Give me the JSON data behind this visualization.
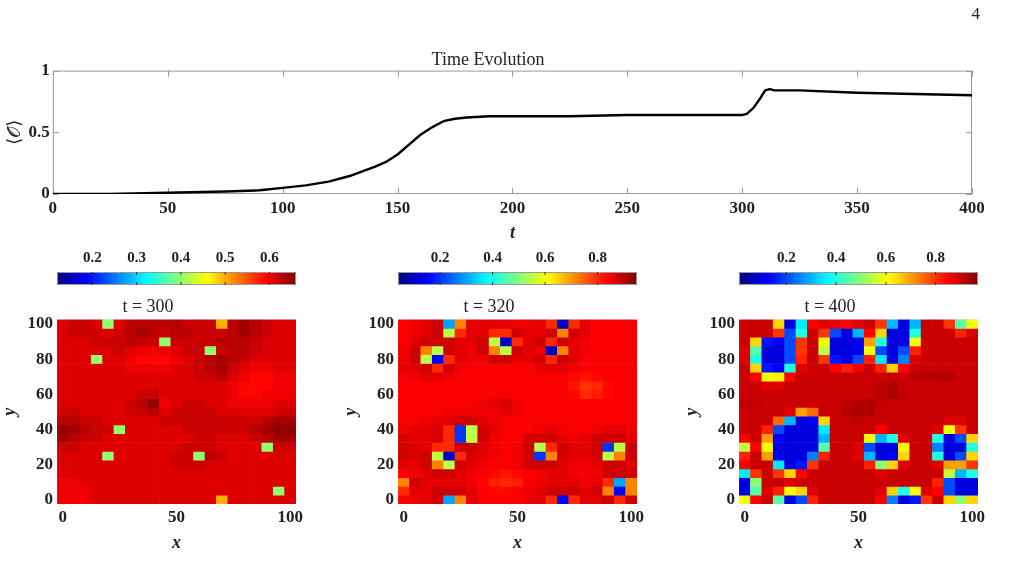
{
  "chart_data": [
    {
      "type": "line",
      "title": "Time Evolution",
      "xlabel": "t",
      "ylabel": "⟨𝒪⟩",
      "x": [
        0,
        25,
        50,
        75,
        90,
        100,
        110,
        120,
        130,
        140,
        145,
        150,
        155,
        160,
        165,
        170,
        175,
        180,
        190,
        200,
        225,
        250,
        275,
        300,
        302,
        305,
        308,
        310,
        312,
        314,
        325,
        350,
        375,
        400
      ],
      "values": [
        0,
        0,
        0.01,
        0.02,
        0.03,
        0.05,
        0.07,
        0.1,
        0.15,
        0.22,
        0.26,
        0.32,
        0.4,
        0.48,
        0.54,
        0.59,
        0.61,
        0.62,
        0.63,
        0.63,
        0.63,
        0.64,
        0.64,
        0.64,
        0.65,
        0.7,
        0.78,
        0.84,
        0.85,
        0.84,
        0.84,
        0.82,
        0.81,
        0.8
      ],
      "color": "#000000",
      "xlim": [
        0,
        400
      ],
      "ylim": [
        0,
        1
      ],
      "xticks": [
        0,
        50,
        100,
        150,
        200,
        250,
        300,
        350,
        400
      ],
      "yticks": [
        0,
        0.5,
        1
      ],
      "annotations": [
        "4"
      ]
    },
    {
      "type": "heatmap",
      "title": "t = 300",
      "xlabel": "x",
      "ylabel": "y",
      "categories": [
        "0",
        null,
        null,
        null,
        null,
        null,
        null,
        null,
        null,
        null,
        "50",
        null,
        null,
        null,
        null,
        null,
        null,
        null,
        null,
        null,
        "100"
      ],
      "y_categories": [
        "100",
        null,
        null,
        null,
        "80",
        null,
        null,
        null,
        "60",
        null,
        null,
        null,
        "40",
        null,
        null,
        null,
        "20",
        null,
        null,
        null,
        "0"
      ],
      "clim": [
        0.12,
        0.66
      ],
      "cticks": [
        0.2,
        0.3,
        0.4,
        0.5,
        0.6
      ],
      "cells": [
        [
          0.61,
          0.62,
          0.62,
          0.61,
          0.4,
          0.61,
          0.63,
          0.63,
          0.63,
          0.63,
          0.63,
          0.62,
          0.62,
          0.62,
          0.5,
          0.63,
          0.64,
          0.63,
          0.62,
          0.61,
          0.61
        ],
        [
          0.61,
          0.62,
          0.62,
          0.62,
          0.61,
          0.62,
          0.63,
          0.64,
          0.63,
          0.62,
          0.63,
          0.63,
          0.62,
          0.62,
          0.62,
          0.63,
          0.64,
          0.63,
          0.62,
          0.61,
          0.61
        ],
        [
          0.61,
          0.61,
          0.61,
          0.62,
          0.62,
          0.62,
          0.63,
          0.62,
          0.62,
          0.4,
          0.62,
          0.62,
          0.62,
          0.62,
          0.63,
          0.63,
          0.63,
          0.62,
          0.61,
          0.61,
          0.61
        ],
        [
          0.61,
          0.61,
          0.61,
          0.61,
          0.61,
          0.62,
          0.61,
          0.6,
          0.6,
          0.6,
          0.61,
          0.62,
          0.62,
          0.4,
          0.62,
          0.63,
          0.63,
          0.62,
          0.61,
          0.61,
          0.61
        ],
        [
          0.61,
          0.61,
          0.61,
          0.4,
          0.61,
          0.61,
          0.6,
          0.59,
          0.59,
          0.59,
          0.6,
          0.61,
          0.62,
          0.63,
          0.64,
          0.63,
          0.62,
          0.61,
          0.61,
          0.61,
          0.61
        ],
        [
          0.61,
          0.61,
          0.61,
          0.61,
          0.61,
          0.61,
          0.6,
          0.6,
          0.6,
          0.6,
          0.61,
          0.61,
          0.62,
          0.63,
          0.64,
          0.62,
          0.61,
          0.6,
          0.6,
          0.61,
          0.61
        ],
        [
          0.61,
          0.61,
          0.61,
          0.61,
          0.61,
          0.61,
          0.61,
          0.61,
          0.61,
          0.61,
          0.61,
          0.61,
          0.62,
          0.62,
          0.63,
          0.61,
          0.6,
          0.59,
          0.59,
          0.6,
          0.6
        ],
        [
          0.61,
          0.61,
          0.61,
          0.61,
          0.61,
          0.61,
          0.61,
          0.61,
          0.61,
          0.61,
          0.61,
          0.61,
          0.61,
          0.61,
          0.61,
          0.6,
          0.59,
          0.59,
          0.59,
          0.6,
          0.6
        ],
        [
          0.61,
          0.61,
          0.61,
          0.61,
          0.61,
          0.61,
          0.61,
          0.62,
          0.62,
          0.61,
          0.61,
          0.61,
          0.61,
          0.61,
          0.61,
          0.6,
          0.59,
          0.59,
          0.6,
          0.6,
          0.6
        ],
        [
          0.61,
          0.61,
          0.61,
          0.61,
          0.61,
          0.61,
          0.62,
          0.63,
          0.65,
          0.6,
          0.61,
          0.62,
          0.62,
          0.61,
          0.61,
          0.6,
          0.6,
          0.6,
          0.6,
          0.61,
          0.61
        ],
        [
          0.62,
          0.62,
          0.61,
          0.61,
          0.61,
          0.61,
          0.62,
          0.62,
          0.63,
          0.61,
          0.62,
          0.62,
          0.62,
          0.62,
          0.61,
          0.61,
          0.61,
          0.61,
          0.61,
          0.62,
          0.62
        ],
        [
          0.63,
          0.63,
          0.62,
          0.62,
          0.61,
          0.61,
          0.61,
          0.61,
          0.61,
          0.62,
          0.62,
          0.62,
          0.62,
          0.62,
          0.62,
          0.62,
          0.62,
          0.62,
          0.63,
          0.64,
          0.64
        ],
        [
          0.65,
          0.64,
          0.63,
          0.62,
          0.62,
          0.4,
          0.61,
          0.61,
          0.61,
          0.61,
          0.61,
          0.62,
          0.62,
          0.62,
          0.62,
          0.62,
          0.62,
          0.63,
          0.64,
          0.65,
          0.65
        ],
        [
          0.64,
          0.63,
          0.62,
          0.62,
          0.61,
          0.61,
          0.61,
          0.61,
          0.61,
          0.61,
          0.61,
          0.61,
          0.62,
          0.62,
          0.61,
          0.61,
          0.61,
          0.62,
          0.63,
          0.64,
          0.64
        ],
        [
          0.62,
          0.62,
          0.61,
          0.61,
          0.61,
          0.61,
          0.61,
          0.61,
          0.61,
          0.61,
          0.61,
          0.62,
          0.62,
          0.62,
          0.61,
          0.61,
          0.61,
          0.61,
          0.4,
          0.62,
          0.62
        ],
        [
          0.61,
          0.61,
          0.61,
          0.61,
          0.4,
          0.61,
          0.61,
          0.61,
          0.61,
          0.61,
          0.62,
          0.62,
          0.4,
          0.63,
          0.62,
          0.61,
          0.61,
          0.61,
          0.61,
          0.61,
          0.61
        ],
        [
          0.61,
          0.61,
          0.61,
          0.61,
          0.61,
          0.61,
          0.61,
          0.61,
          0.61,
          0.61,
          0.62,
          0.62,
          0.62,
          0.61,
          0.61,
          0.61,
          0.61,
          0.61,
          0.61,
          0.61,
          0.61
        ],
        [
          0.61,
          0.61,
          0.61,
          0.61,
          0.61,
          0.61,
          0.61,
          0.61,
          0.61,
          0.61,
          0.61,
          0.61,
          0.61,
          0.61,
          0.61,
          0.61,
          0.61,
          0.61,
          0.61,
          0.61,
          0.61
        ],
        [
          0.6,
          0.6,
          0.61,
          0.61,
          0.61,
          0.61,
          0.61,
          0.61,
          0.61,
          0.61,
          0.61,
          0.61,
          0.61,
          0.61,
          0.61,
          0.61,
          0.61,
          0.61,
          0.61,
          0.61,
          0.61
        ],
        [
          0.6,
          0.6,
          0.6,
          0.61,
          0.61,
          0.61,
          0.61,
          0.61,
          0.61,
          0.61,
          0.61,
          0.61,
          0.61,
          0.61,
          0.61,
          0.61,
          0.61,
          0.61,
          0.61,
          0.4,
          0.61
        ],
        [
          0.6,
          0.6,
          0.6,
          0.61,
          0.61,
          0.61,
          0.61,
          0.61,
          0.61,
          0.61,
          0.61,
          0.61,
          0.61,
          0.61,
          0.5,
          0.61,
          0.61,
          0.61,
          0.61,
          0.61,
          0.61
        ]
      ]
    },
    {
      "type": "heatmap",
      "title": "t = 320",
      "xlabel": "x",
      "ylabel": "y",
      "categories": [
        "0",
        null,
        null,
        null,
        null,
        null,
        null,
        null,
        null,
        null,
        "50",
        null,
        null,
        null,
        null,
        null,
        null,
        null,
        null,
        null,
        "100"
      ],
      "y_categories": [
        "100",
        null,
        null,
        null,
        "80",
        null,
        null,
        null,
        "60",
        null,
        null,
        null,
        "40",
        null,
        null,
        null,
        "20",
        null,
        null,
        null,
        "0"
      ],
      "clim": [
        0.04,
        0.95
      ],
      "cticks": [
        0.2,
        0.4,
        0.6,
        0.8
      ],
      "cells": [
        [
          0.84,
          0.85,
          0.86,
          0.88,
          0.3,
          0.72,
          0.86,
          0.86,
          0.86,
          0.86,
          0.85,
          0.85,
          0.86,
          0.8,
          0.1,
          0.8,
          0.86,
          0.84,
          0.84,
          0.84,
          0.84
        ],
        [
          0.84,
          0.85,
          0.86,
          0.88,
          0.55,
          0.8,
          0.86,
          0.86,
          0.8,
          0.8,
          0.88,
          0.86,
          0.86,
          0.88,
          0.72,
          0.88,
          0.86,
          0.84,
          0.84,
          0.84,
          0.84
        ],
        [
          0.84,
          0.86,
          0.88,
          0.88,
          0.88,
          0.86,
          0.86,
          0.88,
          0.55,
          0.1,
          0.8,
          0.86,
          0.88,
          0.8,
          0.88,
          0.86,
          0.85,
          0.84,
          0.84,
          0.84,
          0.84
        ],
        [
          0.85,
          0.88,
          0.72,
          0.55,
          0.88,
          0.86,
          0.85,
          0.88,
          0.72,
          0.55,
          0.88,
          0.86,
          0.85,
          0.1,
          0.72,
          0.86,
          0.85,
          0.84,
          0.84,
          0.84,
          0.84
        ],
        [
          0.85,
          0.88,
          0.55,
          0.15,
          0.8,
          0.86,
          0.85,
          0.85,
          0.88,
          0.88,
          0.86,
          0.86,
          0.88,
          0.8,
          0.88,
          0.86,
          0.84,
          0.84,
          0.84,
          0.84,
          0.84
        ],
        [
          0.86,
          0.86,
          0.88,
          0.8,
          0.88,
          0.85,
          0.84,
          0.84,
          0.84,
          0.84,
          0.84,
          0.84,
          0.86,
          0.86,
          0.86,
          0.85,
          0.84,
          0.84,
          0.84,
          0.84,
          0.84
        ],
        [
          0.84,
          0.85,
          0.86,
          0.86,
          0.85,
          0.84,
          0.84,
          0.84,
          0.84,
          0.84,
          0.84,
          0.84,
          0.84,
          0.84,
          0.84,
          0.83,
          0.82,
          0.83,
          0.84,
          0.84,
          0.84
        ],
        [
          0.84,
          0.84,
          0.84,
          0.84,
          0.84,
          0.84,
          0.84,
          0.84,
          0.84,
          0.84,
          0.84,
          0.84,
          0.84,
          0.84,
          0.84,
          0.82,
          0.79,
          0.8,
          0.83,
          0.84,
          0.84
        ],
        [
          0.84,
          0.84,
          0.84,
          0.84,
          0.84,
          0.84,
          0.84,
          0.84,
          0.84,
          0.84,
          0.84,
          0.84,
          0.84,
          0.84,
          0.84,
          0.83,
          0.8,
          0.81,
          0.83,
          0.84,
          0.84
        ],
        [
          0.84,
          0.84,
          0.84,
          0.84,
          0.84,
          0.84,
          0.84,
          0.85,
          0.86,
          0.87,
          0.85,
          0.84,
          0.84,
          0.84,
          0.84,
          0.84,
          0.84,
          0.84,
          0.84,
          0.84,
          0.84
        ],
        [
          0.84,
          0.84,
          0.84,
          0.84,
          0.85,
          0.85,
          0.85,
          0.85,
          0.85,
          0.86,
          0.85,
          0.84,
          0.84,
          0.84,
          0.84,
          0.84,
          0.84,
          0.84,
          0.84,
          0.84,
          0.84
        ],
        [
          0.84,
          0.84,
          0.85,
          0.86,
          0.86,
          0.88,
          0.88,
          0.86,
          0.85,
          0.84,
          0.84,
          0.84,
          0.84,
          0.84,
          0.84,
          0.84,
          0.84,
          0.84,
          0.84,
          0.84,
          0.84
        ],
        [
          0.85,
          0.86,
          0.86,
          0.87,
          0.8,
          0.2,
          0.55,
          0.88,
          0.86,
          0.84,
          0.84,
          0.84,
          0.85,
          0.86,
          0.85,
          0.84,
          0.84,
          0.85,
          0.86,
          0.86,
          0.85
        ],
        [
          0.87,
          0.86,
          0.86,
          0.87,
          0.8,
          0.2,
          0.55,
          0.88,
          0.85,
          0.84,
          0.84,
          0.88,
          0.88,
          0.88,
          0.86,
          0.85,
          0.86,
          0.88,
          0.88,
          0.88,
          0.86
        ],
        [
          0.88,
          0.87,
          0.86,
          0.8,
          0.8,
          0.88,
          0.88,
          0.86,
          0.85,
          0.84,
          0.85,
          0.88,
          0.55,
          0.8,
          0.88,
          0.86,
          0.86,
          0.88,
          0.2,
          0.55,
          0.88
        ],
        [
          0.88,
          0.87,
          0.88,
          0.55,
          0.1,
          0.8,
          0.87,
          0.86,
          0.85,
          0.84,
          0.85,
          0.88,
          0.2,
          0.72,
          0.88,
          0.86,
          0.86,
          0.88,
          0.55,
          0.72,
          0.88
        ],
        [
          0.86,
          0.86,
          0.88,
          0.72,
          0.55,
          0.88,
          0.86,
          0.85,
          0.84,
          0.84,
          0.85,
          0.88,
          0.88,
          0.88,
          0.86,
          0.85,
          0.85,
          0.86,
          0.88,
          0.88,
          0.86
        ],
        [
          0.84,
          0.85,
          0.86,
          0.88,
          0.88,
          0.86,
          0.85,
          0.84,
          0.83,
          0.82,
          0.83,
          0.84,
          0.85,
          0.86,
          0.86,
          0.85,
          0.84,
          0.85,
          0.88,
          0.88,
          0.88
        ],
        [
          0.72,
          0.88,
          0.86,
          0.86,
          0.86,
          0.86,
          0.85,
          0.83,
          0.81,
          0.8,
          0.81,
          0.84,
          0.85,
          0.86,
          0.86,
          0.86,
          0.85,
          0.86,
          0.8,
          0.3,
          0.72
        ],
        [
          0.8,
          0.86,
          0.86,
          0.88,
          0.88,
          0.88,
          0.86,
          0.84,
          0.83,
          0.83,
          0.84,
          0.85,
          0.86,
          0.88,
          0.88,
          0.88,
          0.86,
          0.88,
          0.72,
          0.15,
          0.72
        ],
        [
          0.84,
          0.85,
          0.86,
          0.88,
          0.3,
          0.72,
          0.86,
          0.84,
          0.84,
          0.84,
          0.84,
          0.85,
          0.86,
          0.8,
          0.15,
          0.8,
          0.86,
          0.86,
          0.88,
          0.8,
          0.88
        ]
      ]
    },
    {
      "type": "heatmap",
      "title": "t = 400",
      "xlabel": "x",
      "ylabel": "y",
      "categories": [
        "0",
        null,
        null,
        null,
        null,
        null,
        null,
        null,
        null,
        null,
        "50",
        null,
        null,
        null,
        null,
        null,
        null,
        null,
        null,
        null,
        "100"
      ],
      "y_categories": [
        "100",
        null,
        null,
        null,
        "80",
        null,
        null,
        null,
        "60",
        null,
        null,
        null,
        "40",
        null,
        null,
        null,
        "20",
        null,
        null,
        null,
        "0"
      ],
      "clim": [
        0.01,
        0.97
      ],
      "cticks": [
        0.2,
        0.4,
        0.6,
        0.8
      ],
      "cells": [
        [
          0.9,
          0.9,
          0.9,
          0.65,
          0.1,
          0.35,
          0.85,
          0.88,
          0.87,
          0.85,
          0.88,
          0.9,
          0.8,
          0.3,
          0.1,
          0.3,
          0.9,
          0.9,
          0.8,
          0.45,
          0.6
        ],
        [
          0.9,
          0.9,
          0.9,
          0.8,
          0.2,
          0.4,
          0.9,
          0.8,
          0.2,
          0.1,
          0.3,
          0.85,
          0.65,
          0.1,
          0.1,
          0.4,
          0.9,
          0.9,
          0.9,
          0.82,
          0.88
        ],
        [
          0.9,
          0.65,
          0.15,
          0.12,
          0.2,
          0.8,
          0.9,
          0.6,
          0.1,
          0.1,
          0.12,
          0.7,
          0.4,
          0.1,
          0.1,
          0.6,
          0.9,
          0.9,
          0.9,
          0.9,
          0.9
        ],
        [
          0.88,
          0.45,
          0.1,
          0.1,
          0.2,
          0.8,
          0.9,
          0.55,
          0.1,
          0.1,
          0.12,
          0.6,
          0.2,
          0.1,
          0.2,
          0.82,
          0.9,
          0.9,
          0.9,
          0.9,
          0.9
        ],
        [
          0.88,
          0.4,
          0.1,
          0.1,
          0.2,
          0.82,
          0.9,
          0.8,
          0.15,
          0.1,
          0.2,
          0.82,
          0.35,
          0.1,
          0.25,
          0.88,
          0.9,
          0.9,
          0.9,
          0.9,
          0.9
        ],
        [
          0.9,
          0.65,
          0.15,
          0.12,
          0.4,
          0.88,
          0.9,
          0.9,
          0.85,
          0.82,
          0.86,
          0.9,
          0.82,
          0.65,
          0.85,
          0.9,
          0.9,
          0.9,
          0.9,
          0.9,
          0.9
        ],
        [
          0.9,
          0.85,
          0.6,
          0.62,
          0.85,
          0.9,
          0.9,
          0.9,
          0.9,
          0.9,
          0.9,
          0.9,
          0.9,
          0.9,
          0.9,
          0.91,
          0.92,
          0.92,
          0.92,
          0.9,
          0.9
        ],
        [
          0.9,
          0.9,
          0.88,
          0.88,
          0.9,
          0.9,
          0.9,
          0.9,
          0.9,
          0.9,
          0.9,
          0.9,
          0.91,
          0.92,
          0.9,
          0.9,
          0.9,
          0.9,
          0.9,
          0.9,
          0.9
        ],
        [
          0.9,
          0.9,
          0.9,
          0.9,
          0.9,
          0.9,
          0.9,
          0.9,
          0.9,
          0.9,
          0.9,
          0.9,
          0.92,
          0.93,
          0.91,
          0.9,
          0.9,
          0.9,
          0.9,
          0.9,
          0.9
        ],
        [
          0.91,
          0.91,
          0.9,
          0.9,
          0.9,
          0.9,
          0.9,
          0.9,
          0.9,
          0.91,
          0.92,
          0.92,
          0.91,
          0.9,
          0.9,
          0.9,
          0.9,
          0.9,
          0.9,
          0.9,
          0.9
        ],
        [
          0.9,
          0.9,
          0.9,
          0.9,
          0.88,
          0.7,
          0.75,
          0.9,
          0.9,
          0.92,
          0.93,
          0.92,
          0.9,
          0.9,
          0.9,
          0.9,
          0.9,
          0.9,
          0.9,
          0.9,
          0.9
        ],
        [
          0.9,
          0.9,
          0.9,
          0.75,
          0.3,
          0.1,
          0.12,
          0.65,
          0.9,
          0.9,
          0.91,
          0.9,
          0.9,
          0.9,
          0.9,
          0.9,
          0.9,
          0.9,
          0.88,
          0.88,
          0.9
        ],
        [
          0.9,
          0.9,
          0.82,
          0.2,
          0.1,
          0.1,
          0.1,
          0.35,
          0.9,
          0.9,
          0.9,
          0.9,
          0.85,
          0.9,
          0.9,
          0.9,
          0.9,
          0.88,
          0.6,
          0.8,
          0.9
        ],
        [
          0.85,
          0.9,
          0.7,
          0.12,
          0.1,
          0.1,
          0.1,
          0.3,
          0.9,
          0.9,
          0.9,
          0.6,
          0.3,
          0.4,
          0.88,
          0.9,
          0.9,
          0.4,
          0.1,
          0.2,
          0.65
        ],
        [
          0.55,
          0.85,
          0.6,
          0.1,
          0.1,
          0.1,
          0.1,
          0.45,
          0.9,
          0.9,
          0.88,
          0.2,
          0.1,
          0.1,
          0.62,
          0.9,
          0.9,
          0.25,
          0.1,
          0.1,
          0.4
        ],
        [
          0.82,
          0.9,
          0.7,
          0.12,
          0.1,
          0.1,
          0.25,
          0.82,
          0.9,
          0.9,
          0.88,
          0.3,
          0.1,
          0.12,
          0.65,
          0.9,
          0.9,
          0.4,
          0.1,
          0.2,
          0.65
        ],
        [
          0.85,
          0.9,
          0.9,
          0.35,
          0.1,
          0.15,
          0.8,
          0.9,
          0.9,
          0.9,
          0.9,
          0.82,
          0.5,
          0.65,
          0.88,
          0.9,
          0.9,
          0.88,
          0.7,
          0.7,
          0.8
        ],
        [
          0.35,
          0.8,
          0.9,
          0.8,
          0.65,
          0.85,
          0.9,
          0.9,
          0.9,
          0.9,
          0.9,
          0.9,
          0.88,
          0.9,
          0.9,
          0.9,
          0.9,
          0.9,
          0.55,
          0.3,
          0.4
        ],
        [
          0.1,
          0.5,
          0.9,
          0.9,
          0.88,
          0.9,
          0.9,
          0.9,
          0.9,
          0.9,
          0.9,
          0.9,
          0.9,
          0.9,
          0.9,
          0.9,
          0.9,
          0.82,
          0.2,
          0.1,
          0.1
        ],
        [
          0.1,
          0.45,
          0.88,
          0.82,
          0.6,
          0.65,
          0.88,
          0.9,
          0.9,
          0.9,
          0.9,
          0.9,
          0.88,
          0.65,
          0.4,
          0.6,
          0.88,
          0.85,
          0.2,
          0.1,
          0.1
        ],
        [
          0.6,
          0.85,
          0.9,
          0.45,
          0.1,
          0.2,
          0.82,
          0.9,
          0.9,
          0.9,
          0.9,
          0.9,
          0.85,
          0.25,
          0.1,
          0.15,
          0.8,
          0.9,
          0.65,
          0.5,
          0.65
        ]
      ]
    }
  ]
}
